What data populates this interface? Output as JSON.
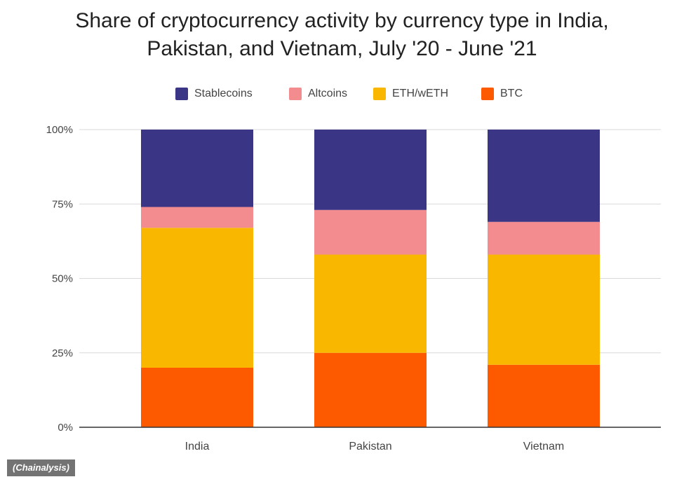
{
  "chart_data": {
    "type": "bar",
    "stacked": true,
    "title_lines": [
      "Share of cryptocurrency activity by currency type in India,",
      "Pakistan, and Vietnam, July '20 - June '21"
    ],
    "categories": [
      "India",
      "Pakistan",
      "Vietnam"
    ],
    "series": [
      {
        "name": "BTC",
        "color": "#fd5a00",
        "values": [
          20,
          25,
          21
        ]
      },
      {
        "name": "ETH/wETH",
        "color": "#f9b700",
        "values": [
          47,
          33,
          37
        ]
      },
      {
        "name": "Altcoins",
        "color": "#f28c8f",
        "values": [
          7,
          15,
          11
        ]
      },
      {
        "name": "Stablecoins",
        "color": "#3a3585",
        "values": [
          26,
          27,
          31
        ]
      }
    ],
    "legend_order": [
      "Stablecoins",
      "Altcoins",
      "ETH/wETH",
      "BTC"
    ],
    "legend_position": "top",
    "y_ticks": [
      "0%",
      "25%",
      "50%",
      "75%",
      "100%"
    ],
    "ylim": [
      0,
      100
    ],
    "grid": true
  },
  "source": "(Chainalysis)"
}
